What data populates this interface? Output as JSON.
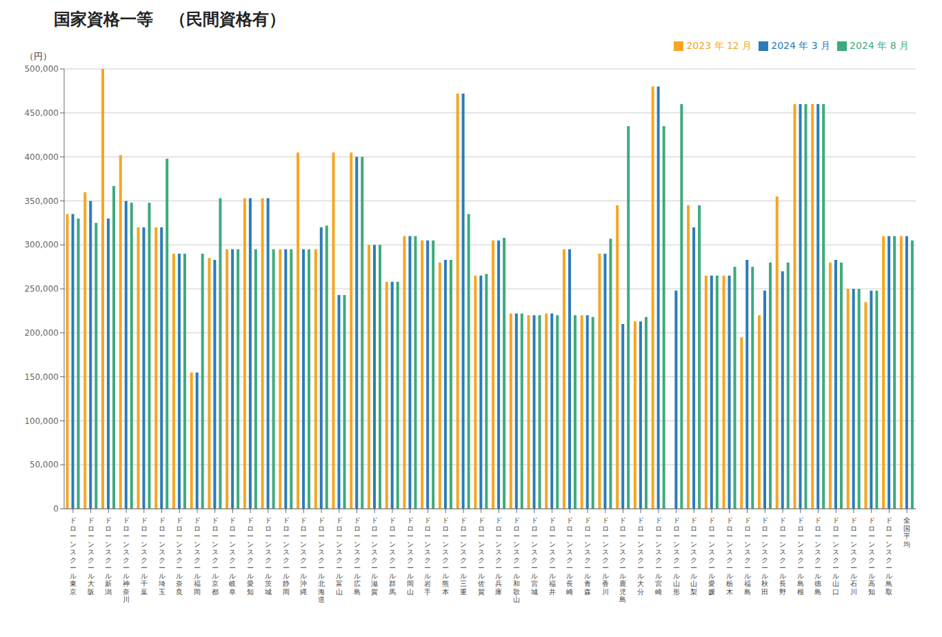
{
  "chart_data": {
    "type": "bar",
    "title": "国家資格一等　（民間資格有）",
    "ylabel": "（円）",
    "categories": [
      "ドローンスクール東京",
      "ドローンスクール大阪",
      "ドローンスクール新潟",
      "ドローンスクール神奈川",
      "ドローンスクール千葉",
      "ドローンスクール埼玉",
      "ドローンスクール奈良",
      "ドローンスクール福岡",
      "ドローンスクール京都",
      "ドローンスクール岐阜",
      "ドローンスクール愛知",
      "ドローンスクール茨城",
      "ドローンスクール静岡",
      "ドローンスクール沖縄",
      "ドローンスクール北海道",
      "ドローンスクール富山",
      "ドローンスクール広島",
      "ドローンスクール滋賀",
      "ドローンスクール群馬",
      "ドローンスクール岡山",
      "ドローンスクール岩手",
      "ドローンスクール熊本",
      "ドローンスクール三重",
      "ドローンスクール佐賀",
      "ドローンスクール兵庫",
      "ドローンスクール和歌山",
      "ドローンスクール宮城",
      "ドローンスクール福井",
      "ドローンスクール長崎",
      "ドローンスクール青森",
      "ドローンスクール香川",
      "ドローンスクール鹿児島",
      "ドローンスクール大分",
      "ドローンスクール宮崎",
      "ドローンスクール山形",
      "ドローンスクール山梨",
      "ドローンスクール愛媛",
      "ドローンスクール栃木",
      "ドローンスクール福島",
      "ドローンスクール秋田",
      "ドローンスクール長野",
      "ドローンスクール島根",
      "ドローンスクール徳島",
      "ドローンスクール山口",
      "ドローンスクール石川",
      "ドローンスクール高知",
      "ドローンスクール鳥取",
      "全国平均"
    ],
    "series": [
      {
        "name": "2023 年 12 月",
        "color": "#F5A623",
        "values": [
          335000,
          360000,
          500000,
          402000,
          320000,
          320000,
          290000,
          155000,
          285000,
          295000,
          353000,
          353000,
          295000,
          405000,
          295000,
          405000,
          405000,
          300000,
          258000,
          310000,
          305000,
          280000,
          472000,
          265000,
          305000,
          222000,
          220000,
          222000,
          295000,
          220000,
          290000,
          345000,
          213000,
          480000,
          0,
          345000,
          265000,
          265000,
          195000,
          220000,
          355000,
          460000,
          460000,
          280000,
          250000,
          235000,
          310000,
          310000
        ]
      },
      {
        "name": "2024 年 3 月",
        "color": "#2B7BB9",
        "values": [
          335000,
          350000,
          330000,
          350000,
          320000,
          320000,
          290000,
          155000,
          283000,
          295000,
          353000,
          353000,
          295000,
          295000,
          320000,
          243000,
          400000,
          300000,
          258000,
          310000,
          305000,
          283000,
          472000,
          265000,
          305000,
          222000,
          220000,
          222000,
          295000,
          220000,
          290000,
          210000,
          213000,
          480000,
          248000,
          320000,
          265000,
          265000,
          283000,
          248000,
          270000,
          460000,
          460000,
          283000,
          250000,
          248000,
          310000,
          310000
        ]
      },
      {
        "name": "2024 年 8 月",
        "color": "#3DAA7D",
        "values": [
          330000,
          325000,
          367000,
          348000,
          348000,
          398000,
          290000,
          290000,
          353000,
          295000,
          295000,
          295000,
          295000,
          295000,
          322000,
          243000,
          400000,
          300000,
          258000,
          310000,
          305000,
          283000,
          335000,
          267000,
          308000,
          222000,
          220000,
          220000,
          220000,
          218000,
          307000,
          435000,
          218000,
          435000,
          460000,
          345000,
          265000,
          275000,
          275000,
          280000,
          280000,
          460000,
          460000,
          280000,
          250000,
          248000,
          310000,
          305000
        ]
      }
    ],
    "ylim": [
      0,
      500000
    ],
    "yticks": [
      0,
      {
        "value": 50000,
        "label": "50,000"
      },
      {
        "value": 100000,
        "label": "100,000"
      },
      {
        "value": 150000,
        "label": "150,000"
      },
      {
        "value": 200000,
        "label": "200,000"
      },
      {
        "value": 250000,
        "label": "250,000"
      },
      {
        "value": 300000,
        "label": "300,000"
      },
      {
        "value": 350000,
        "label": "350,000"
      },
      {
        "value": 400000,
        "label": "400,000"
      },
      {
        "value": 450000,
        "label": "450,000"
      },
      {
        "value": 500000,
        "label": "500,000"
      }
    ],
    "grid": true,
    "legend": "upper right"
  }
}
